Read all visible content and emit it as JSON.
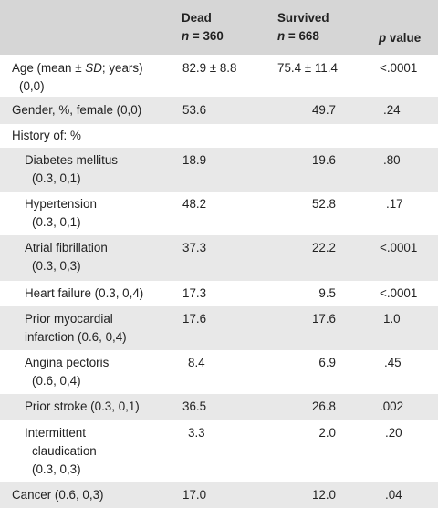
{
  "header": {
    "dead": {
      "title": "Dead",
      "n": "n = 360"
    },
    "survived": {
      "title": "Survived",
      "n": "n = 668"
    },
    "p": "p value"
  },
  "rows": [
    {
      "label1": "Age (mean ± SD; years)",
      "label2": "(0,0)",
      "dead": "82.9 ± 8.8",
      "survived": "75.4 ± 11.4",
      "p": "<.0001"
    },
    {
      "label1": "Gender, %, female (0,0)",
      "dead": "53.6",
      "survived": "49.7",
      "p": ".24"
    },
    {
      "label1": "History of: %"
    },
    {
      "label1": "Diabetes mellitus",
      "label2": "(0.3, 0,1)",
      "dead": "18.9",
      "survived": "19.6",
      "p": ".80"
    },
    {
      "label1": "Hypertension",
      "label2": "(0.3, 0,1)",
      "dead": "48.2",
      "survived": "52.8",
      "p": ".17"
    },
    {
      "label1": "Atrial fibrillation",
      "label2": "(0.3, 0,3)",
      "dead": "37.3",
      "survived": "22.2",
      "p": "<.0001"
    },
    {
      "label1": "Heart failure (0.3, 0,4)",
      "dead": "17.3",
      "survived": "9.5",
      "p": "<.0001"
    },
    {
      "label1": "Prior myocardial",
      "label2": "infarction (0.6, 0,4)",
      "dead": "17.6",
      "survived": "17.6",
      "p": "1.0"
    },
    {
      "label1": "Angina pectoris",
      "label2": "(0.6, 0,4)",
      "dead": "8.4",
      "survived": "6.9",
      "p": ".45"
    },
    {
      "label1": "Prior stroke (0.3, 0,1)",
      "dead": "36.5",
      "survived": "26.8",
      "p": ".002"
    },
    {
      "label1": "Intermittent",
      "label2": "claudication",
      "label3": "(0.3, 0,3)",
      "dead": "3.3",
      "survived": "2.0",
      "p": ".20"
    },
    {
      "label1": "Cancer (0.6, 0,3)",
      "dead": "17.0",
      "survived": "12.0",
      "p": ".04"
    }
  ]
}
